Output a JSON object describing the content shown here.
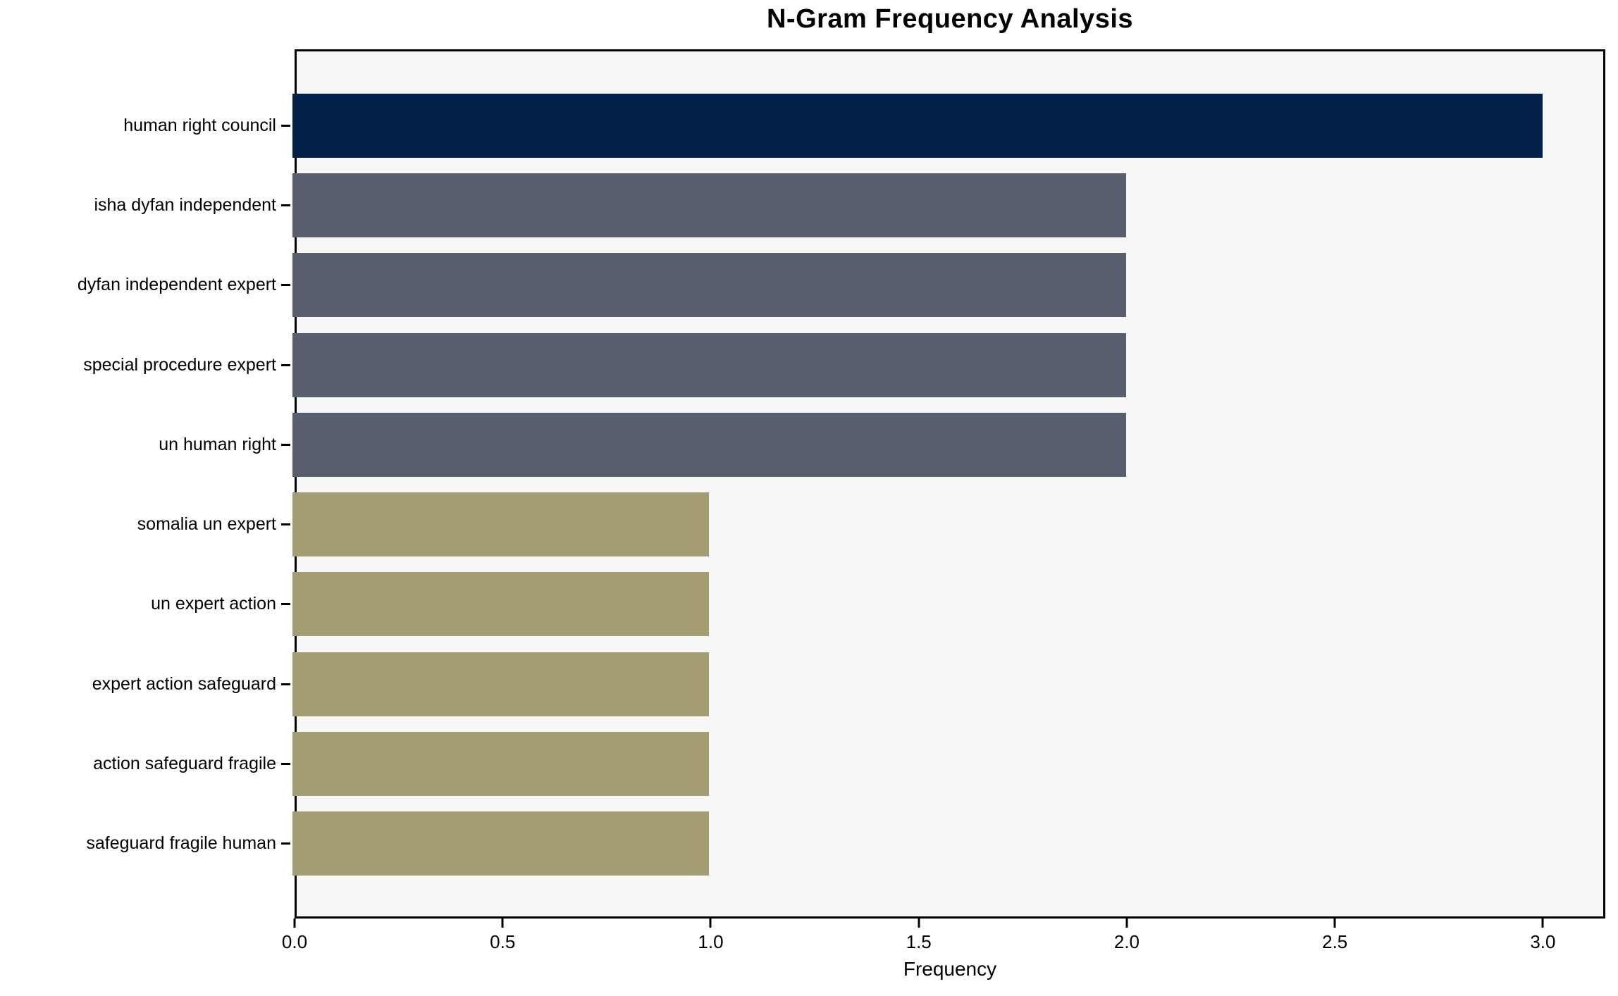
{
  "chart_data": {
    "type": "bar",
    "orientation": "horizontal",
    "title": "N-Gram Frequency Analysis",
    "xlabel": "Frequency",
    "ylabel": "",
    "categories": [
      "human right council",
      "isha dyfan independent",
      "dyfan independent expert",
      "special procedure expert",
      "un human right",
      "somalia un expert",
      "un expert action",
      "expert action safeguard",
      "action safeguard fragile",
      "safeguard fragile human"
    ],
    "values": [
      3,
      2,
      2,
      2,
      2,
      1,
      1,
      1,
      1,
      1
    ],
    "bar_colors": [
      "#022149",
      "#575E6E",
      "#575E6E",
      "#575E6E",
      "#575E6E",
      "#A49D73",
      "#A49D73",
      "#A49D73",
      "#A49D73",
      "#A49D73"
    ],
    "x_tick_values": [
      0,
      0.5,
      1.0,
      1.5,
      2.0,
      2.5,
      3.0
    ],
    "x_tick_labels": [
      "0.0",
      "0.5",
      "1.0",
      "1.5",
      "2.0",
      "2.5",
      "3.0"
    ],
    "xlim": [
      0,
      3.15
    ],
    "grid": false,
    "legend": null,
    "colors": {
      "plot_background": "#F7F7F7",
      "figure_background": "#FFFFFF",
      "spine": "#000000",
      "text": "#000000",
      "bar_top": "#022149",
      "bar_mid": "#575E6E",
      "bar_low": "#A49D73"
    }
  }
}
